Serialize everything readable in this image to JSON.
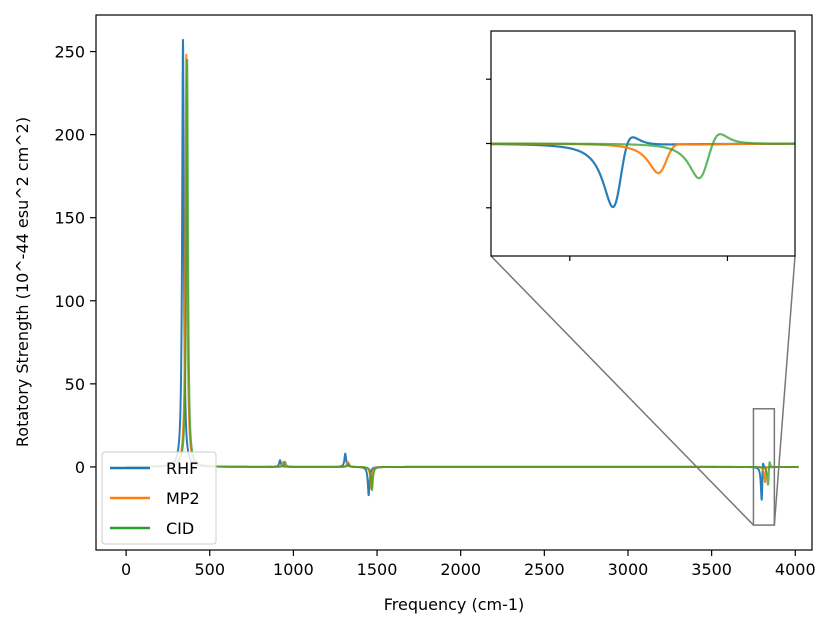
{
  "chart_data": {
    "type": "line",
    "xlabel": "Frequency (cm-1)",
    "ylabel": "Rotatory Strength (10^-44 esu^2 cm^2)",
    "xlim": [
      -180,
      4100
    ],
    "ylim": [
      -50,
      272
    ],
    "xticks": [
      0,
      500,
      1000,
      1500,
      2000,
      2500,
      3000,
      3500,
      4000
    ],
    "yticks": [
      0,
      50,
      100,
      150,
      200,
      250
    ],
    "grid": false,
    "legend_position": "lower-left",
    "x_range": [
      0,
      4020
    ],
    "peak_width": 6,
    "series": [
      {
        "name": "RHF",
        "color": "#1f77b4",
        "peaks": [
          [
            340,
            257
          ],
          [
            920,
            4
          ],
          [
            1310,
            8
          ],
          [
            1450,
            -17
          ],
          [
            3805,
            15
          ],
          [
            3800,
            -28
          ]
        ]
      },
      {
        "name": "MP2",
        "color": "#ff7f0e",
        "peaks": [
          [
            360,
            248
          ],
          [
            940,
            3
          ],
          [
            1325,
            3
          ],
          [
            1465,
            -13
          ],
          [
            3825,
            5
          ],
          [
            3820,
            -12
          ]
        ]
      },
      {
        "name": "CID",
        "color": "#2ca02c",
        "peaks": [
          [
            365,
            245
          ],
          [
            950,
            3
          ],
          [
            1330,
            2
          ],
          [
            1470,
            -14
          ],
          [
            3845,
            8
          ],
          [
            3838,
            -14
          ]
        ]
      }
    ],
    "inset": {
      "xlim": [
        3745,
        3880
      ],
      "ylim": [
        -35,
        35
      ],
      "zoom_box_in_main": {
        "x": [
          3750,
          3875
        ],
        "y": [
          -35,
          35
        ]
      }
    }
  }
}
